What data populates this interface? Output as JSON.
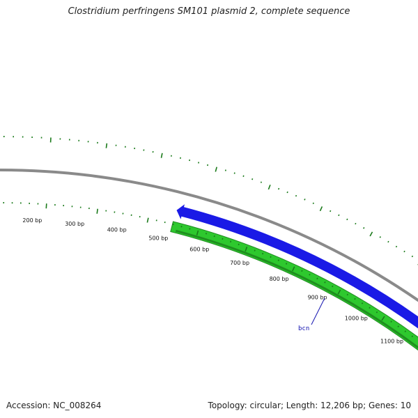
{
  "title": "Clostridium perfringens SM101 plasmid 2, complete sequence",
  "footer": {
    "accession": "Accession: NC_008264",
    "summary": "Topology: circular; Length: 12,206 bp; Genes: 10"
  },
  "map": {
    "sequence_length_bp": 12206,
    "colors": {
      "backbone": "#8a8a8a",
      "forward_feature": "#1a1ae6",
      "reverse_feature": "#2ec82e",
      "ticks": "#1a7a1a",
      "gene_label": "#1010b0"
    },
    "tick_labels": [
      {
        "bp": 200,
        "text": "200 bp"
      },
      {
        "bp": 300,
        "text": "300 bp"
      },
      {
        "bp": 400,
        "text": "400 bp"
      },
      {
        "bp": 500,
        "text": "500 bp"
      },
      {
        "bp": 600,
        "text": "600 bp"
      },
      {
        "bp": 700,
        "text": "700 bp"
      },
      {
        "bp": 800,
        "text": "800 bp"
      },
      {
        "bp": 900,
        "text": "900 bp"
      },
      {
        "bp": 1000,
        "text": "1000 bp"
      },
      {
        "bp": 1100,
        "text": "1100 bp"
      }
    ],
    "gene_labels": [
      {
        "text": "bcn"
      }
    ]
  }
}
